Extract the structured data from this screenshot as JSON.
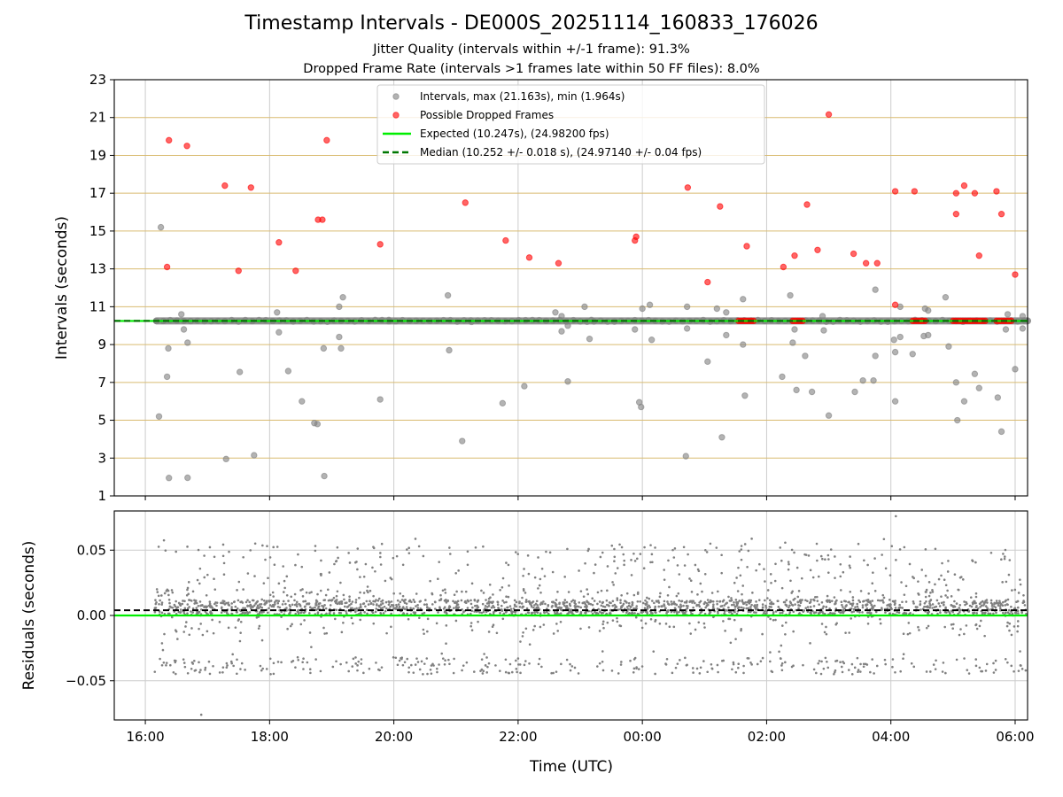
{
  "title": "Timestamp Intervals - DE000S_20251114_160833_176026",
  "subtitle_1": "Jitter Quality (intervals within +/-1 frame): 91.3%",
  "subtitle_2": "Dropped Frame Rate (intervals >1 frames late within 50 FF files): 8.0%",
  "colors": {
    "gray": "#808080",
    "red": "#ff0000",
    "expected": "#00ee00",
    "median": "#007700",
    "hgrid": "#d9bb70",
    "vgrid": "#cccccc"
  },
  "chart_data": [
    {
      "type": "scatter",
      "panel": "intervals",
      "ylabel": "Intervals (seconds)",
      "xlim_hours": [
        -0.5,
        14.2
      ],
      "ylim": [
        1,
        23
      ],
      "yticks": [
        1,
        3,
        5,
        7,
        9,
        11,
        13,
        15,
        17,
        19,
        21,
        23
      ],
      "ytick_labels": [
        "1",
        "3",
        "5",
        "7",
        "9",
        "11",
        "13",
        "15",
        "17",
        "19",
        "21",
        "23"
      ],
      "legend": {
        "position": "top-center",
        "entries": [
          "Intervals, max (21.163s), min (1.964s)",
          "Possible Dropped Frames",
          "Expected (10.247s), (24.98200 fps)",
          "Median (10.252 +/- 0.018 s), (24.97140 +/- 0.04 fps)"
        ]
      },
      "expected": 10.247,
      "median": 10.252,
      "main_band": {
        "value": 10.252,
        "x_start": 0.18,
        "x_end": 14.2
      },
      "dropped_clusters": [
        [
          9.55,
          9.8
        ],
        [
          10.42,
          10.6
        ],
        [
          12.35,
          12.55
        ],
        [
          13.0,
          13.55
        ],
        [
          13.7,
          13.95
        ]
      ],
      "series": [
        {
          "name": "Intervals",
          "points": [
            [
              0.25,
              15.2
            ],
            [
              0.22,
              5.2
            ],
            [
              0.35,
              7.3
            ],
            [
              0.37,
              8.8
            ],
            [
              0.38,
              1.95
            ],
            [
              0.58,
              10.6
            ],
            [
              0.62,
              9.8
            ],
            [
              0.68,
              9.1
            ],
            [
              0.68,
              1.96
            ],
            [
              1.3,
              2.95
            ],
            [
              1.52,
              7.55
            ],
            [
              1.75,
              3.15
            ],
            [
              2.15,
              9.65
            ],
            [
              2.12,
              10.7
            ],
            [
              2.3,
              7.6
            ],
            [
              2.52,
              6.0
            ],
            [
              2.72,
              4.85
            ],
            [
              2.77,
              4.8
            ],
            [
              2.88,
              2.05
            ],
            [
              2.87,
              8.8
            ],
            [
              3.12,
              9.4
            ],
            [
              3.12,
              11.0
            ],
            [
              3.18,
              11.5
            ],
            [
              3.15,
              8.8
            ],
            [
              3.78,
              6.1
            ],
            [
              3.92,
              10.3
            ],
            [
              4.87,
              11.6
            ],
            [
              4.89,
              8.7
            ],
            [
              5.1,
              3.9
            ],
            [
              5.25,
              10.2
            ],
            [
              5.75,
              5.9
            ],
            [
              6.1,
              6.8
            ],
            [
              6.6,
              10.7
            ],
            [
              6.7,
              9.7
            ],
            [
              6.7,
              10.5
            ],
            [
              6.8,
              7.05
            ],
            [
              6.8,
              10.0
            ],
            [
              7.07,
              11.0
            ],
            [
              7.15,
              9.3
            ],
            [
              7.18,
              10.3
            ],
            [
              7.88,
              9.8
            ],
            [
              7.95,
              5.95
            ],
            [
              7.98,
              5.7
            ],
            [
              8.0,
              10.9
            ],
            [
              8.12,
              11.1
            ],
            [
              8.15,
              9.25
            ],
            [
              8.7,
              3.1
            ],
            [
              8.72,
              9.85
            ],
            [
              8.72,
              11.0
            ],
            [
              9.05,
              8.1
            ],
            [
              9.2,
              10.9
            ],
            [
              9.28,
              4.1
            ],
            [
              9.35,
              9.5
            ],
            [
              9.35,
              10.7
            ],
            [
              9.62,
              9.0
            ],
            [
              9.62,
              11.4
            ],
            [
              9.65,
              6.3
            ],
            [
              10.25,
              7.3
            ],
            [
              10.38,
              11.6
            ],
            [
              10.42,
              9.1
            ],
            [
              10.45,
              9.8
            ],
            [
              10.48,
              6.6
            ],
            [
              10.62,
              8.4
            ],
            [
              10.73,
              6.5
            ],
            [
              10.9,
              10.5
            ],
            [
              10.92,
              9.75
            ],
            [
              11.0,
              5.25
            ],
            [
              11.42,
              6.5
            ],
            [
              11.55,
              7.1
            ],
            [
              11.72,
              7.1
            ],
            [
              11.75,
              8.4
            ],
            [
              11.75,
              11.9
            ],
            [
              12.07,
              8.6
            ],
            [
              12.05,
              9.25
            ],
            [
              12.07,
              6.0
            ],
            [
              12.15,
              11.0
            ],
            [
              12.15,
              9.4
            ],
            [
              12.35,
              8.5
            ],
            [
              12.53,
              9.45
            ],
            [
              12.6,
              9.5
            ],
            [
              12.55,
              10.9
            ],
            [
              12.6,
              10.8
            ],
            [
              12.88,
              11.5
            ],
            [
              12.93,
              8.9
            ],
            [
              13.05,
              7.0
            ],
            [
              13.07,
              5.0
            ],
            [
              13.18,
              6.0
            ],
            [
              13.35,
              7.45
            ],
            [
              13.42,
              6.7
            ],
            [
              13.72,
              6.2
            ],
            [
              13.78,
              4.4
            ],
            [
              13.85,
              9.8
            ],
            [
              13.88,
              10.6
            ],
            [
              14.0,
              7.7
            ],
            [
              14.12,
              10.5
            ],
            [
              14.12,
              9.85
            ]
          ]
        },
        {
          "name": "Possible Dropped Frames",
          "points": [
            [
              0.38,
              19.8
            ],
            [
              0.35,
              13.1
            ],
            [
              0.67,
              19.5
            ],
            [
              1.28,
              17.4
            ],
            [
              1.5,
              12.9
            ],
            [
              1.7,
              17.3
            ],
            [
              2.15,
              14.4
            ],
            [
              2.42,
              12.9
            ],
            [
              2.78,
              15.6
            ],
            [
              2.85,
              15.6
            ],
            [
              2.92,
              19.8
            ],
            [
              3.78,
              14.3
            ],
            [
              5.15,
              16.5
            ],
            [
              5.8,
              14.5
            ],
            [
              6.18,
              13.6
            ],
            [
              6.65,
              13.3
            ],
            [
              7.88,
              14.5
            ],
            [
              7.9,
              14.7
            ],
            [
              8.73,
              17.3
            ],
            [
              9.05,
              12.3
            ],
            [
              9.25,
              16.3
            ],
            [
              9.68,
              14.2
            ],
            [
              10.27,
              13.1
            ],
            [
              10.45,
              13.7
            ],
            [
              10.65,
              16.4
            ],
            [
              10.82,
              14.0
            ],
            [
              11.0,
              21.16
            ],
            [
              11.4,
              13.8
            ],
            [
              11.6,
              13.3
            ],
            [
              11.78,
              13.3
            ],
            [
              12.07,
              17.1
            ],
            [
              12.07,
              11.1
            ],
            [
              12.38,
              17.1
            ],
            [
              13.05,
              17.0
            ],
            [
              13.05,
              15.9
            ],
            [
              13.18,
              17.4
            ],
            [
              13.35,
              17.0
            ],
            [
              13.42,
              13.7
            ],
            [
              13.7,
              17.1
            ],
            [
              13.78,
              15.9
            ],
            [
              14.0,
              12.7
            ]
          ]
        }
      ]
    },
    {
      "type": "scatter",
      "panel": "residuals",
      "ylabel": "Residuals (seconds)",
      "xlabel": "Time (UTC)",
      "xlim_hours": [
        -0.5,
        14.2
      ],
      "ylim": [
        -0.08,
        0.08
      ],
      "yticks": [
        -0.05,
        0.0,
        0.05
      ],
      "ytick_labels": [
        "−0.05",
        "0.00",
        "0.05"
      ],
      "xticks_hours": [
        0,
        2,
        4,
        6,
        8,
        10,
        12,
        14
      ],
      "xtick_labels": [
        "16:00",
        "18:00",
        "20:00",
        "22:00",
        "00:00",
        "02:00",
        "04:00",
        "06:00"
      ],
      "expected_residual": 0.0,
      "median_residual": 0.004,
      "residual_range": {
        "x_start": 0.15,
        "x_end": 14.2,
        "core_band": [
          0.0,
          0.012
        ],
        "scatter_band": [
          -0.045,
          0.06
        ],
        "min": -0.076,
        "max": 0.076
      }
    }
  ]
}
